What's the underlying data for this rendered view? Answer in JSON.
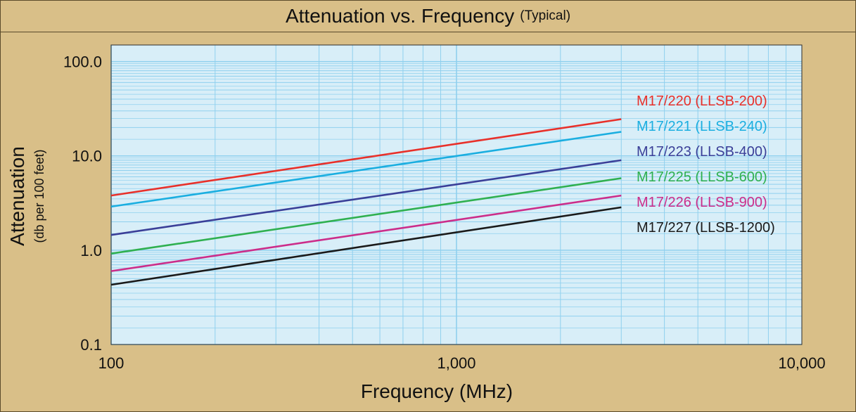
{
  "chart_data": {
    "type": "line",
    "title": "Attenuation vs. Frequency",
    "subtitle": "(Typical)",
    "xlabel": "Frequency (MHz)",
    "ylabel": "Attenuation",
    "ylabel_sub": "(db per 100 feet)",
    "x_scale": "log",
    "y_scale": "log",
    "xlim": [
      100,
      10000
    ],
    "ylim": [
      0.1,
      150
    ],
    "x_ticks": [
      {
        "value": 100,
        "label": "100"
      },
      {
        "value": 1000,
        "label": "1,000"
      },
      {
        "value": 10000,
        "label": "10,000"
      }
    ],
    "y_ticks": [
      {
        "value": 0.1,
        "label": "0.1"
      },
      {
        "value": 1,
        "label": "1.0"
      },
      {
        "value": 10,
        "label": "10.0"
      },
      {
        "value": 100,
        "label": "100.0"
      }
    ],
    "grid": true,
    "legend_position": "right, inline",
    "series": [
      {
        "name": "M17/220 (LLSB-200)",
        "color": "#e8302a",
        "x": [
          100,
          3000
        ],
        "y": [
          3.8,
          24.5
        ]
      },
      {
        "name": "M17/221 (LLSB-240)",
        "color": "#1aaee0",
        "x": [
          100,
          3000
        ],
        "y": [
          2.9,
          18.0
        ]
      },
      {
        "name": "M17/223 (LLSB-400)",
        "color": "#3a3f98",
        "x": [
          100,
          3000
        ],
        "y": [
          1.45,
          9.0
        ]
      },
      {
        "name": "M17/225 (LLSB-600)",
        "color": "#2fb050",
        "x": [
          100,
          3000
        ],
        "y": [
          0.92,
          5.8
        ]
      },
      {
        "name": "M17/226 (LLSB-900)",
        "color": "#cc2d8a",
        "x": [
          100,
          3000
        ],
        "y": [
          0.6,
          3.8
        ]
      },
      {
        "name": "M17/227 (LLSB-1200)",
        "color": "#1a1a1a",
        "x": [
          100,
          3000
        ],
        "y": [
          0.43,
          2.85
        ]
      }
    ]
  },
  "colors": {
    "frame_bg": "#d9bf88",
    "plot_bg": "#d8eef8",
    "grid": "#8fd0ee"
  }
}
